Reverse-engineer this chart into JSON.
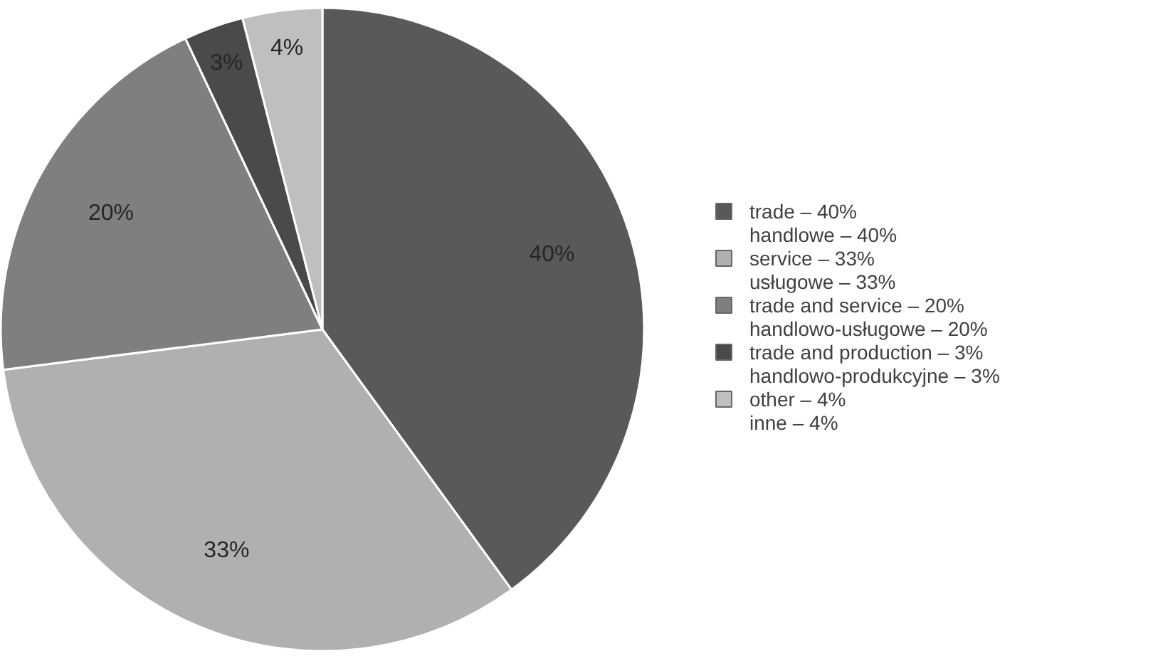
{
  "chart_data": {
    "type": "pie",
    "categories": [
      "trade – 40%\nhandlowe – 40%",
      "service – 33%\nusługowe – 33%",
      "trade and service – 20%\nhandlowo-usługowe – 20%",
      "trade and production – 3%\nhandlowo-produkcyjne – 3%",
      "other – 4%\ninne – 4%"
    ],
    "values": [
      40,
      33,
      20,
      3,
      4
    ],
    "colors": [
      "#595959",
      "#b0b0b0",
      "#7f7f7f",
      "#4a4a4a",
      "#bfbfbf"
    ],
    "value_labels": [
      "40%",
      "33%",
      "20%",
      "3%",
      "4%"
    ],
    "legend": "right"
  }
}
